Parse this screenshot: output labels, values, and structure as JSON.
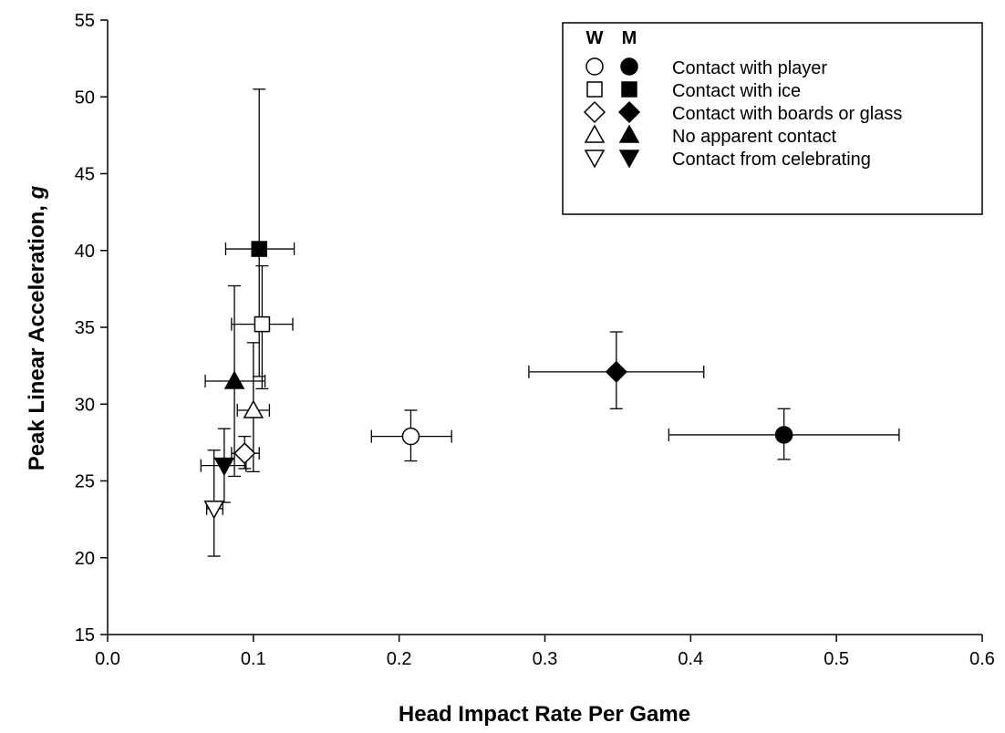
{
  "chart_data": {
    "type": "scatter",
    "title": "",
    "xlabel": "Head Impact Rate Per Game",
    "ylabel": "Peak Linear Acceleration, ",
    "ylabel_italic": "g",
    "xlim": [
      0.0,
      0.6
    ],
    "ylim": [
      15,
      55
    ],
    "x_ticks": [
      "0.0",
      "0.1",
      "0.2",
      "0.3",
      "0.4",
      "0.5",
      "0.6"
    ],
    "y_ticks": [
      "15",
      "20",
      "25",
      "30",
      "35",
      "40",
      "45",
      "50",
      "55"
    ],
    "x_tick_values": [
      0.0,
      0.1,
      0.2,
      0.3,
      0.4,
      0.5,
      0.6
    ],
    "y_tick_values": [
      15,
      20,
      25,
      30,
      35,
      40,
      45,
      50,
      55
    ],
    "grid": false,
    "legend_placement": "top-right",
    "legend_headers": [
      "W",
      "M"
    ],
    "series": [
      {
        "name": "Contact with player",
        "marker": "circle",
        "points": [
          {
            "group": "W",
            "x": 0.208,
            "y": 27.9,
            "xerr": [
              0.181,
              0.236
            ],
            "yerr": [
              26.3,
              29.6
            ]
          },
          {
            "group": "M",
            "x": 0.464,
            "y": 28.0,
            "xerr": [
              0.385,
              0.543
            ],
            "yerr": [
              26.4,
              29.7
            ]
          }
        ]
      },
      {
        "name": "Contact with ice",
        "marker": "square",
        "points": [
          {
            "group": "W",
            "x": 0.106,
            "y": 35.2,
            "xerr": [
              0.085,
              0.127
            ],
            "yerr": [
              31.0,
              39.0
            ]
          },
          {
            "group": "M",
            "x": 0.104,
            "y": 40.1,
            "xerr": [
              0.081,
              0.128
            ],
            "yerr": [
              31.8,
              50.5
            ]
          }
        ]
      },
      {
        "name": "Contact with boards or glass",
        "marker": "diamond",
        "points": [
          {
            "group": "W",
            "x": 0.094,
            "y": 26.8,
            "xerr": [
              0.085,
              0.104
            ],
            "yerr": [
              25.8,
              27.9
            ]
          },
          {
            "group": "M",
            "x": 0.349,
            "y": 32.1,
            "xerr": [
              0.289,
              0.409
            ],
            "yerr": [
              29.7,
              34.7
            ]
          }
        ]
      },
      {
        "name": "No apparent contact",
        "marker": "triangle-up",
        "points": [
          {
            "group": "W",
            "x": 0.1,
            "y": 29.6,
            "xerr": [
              0.089,
              0.111
            ],
            "yerr": [
              25.6,
              34.0
            ]
          },
          {
            "group": "M",
            "x": 0.087,
            "y": 31.5,
            "xerr": [
              0.067,
              0.108
            ],
            "yerr": [
              25.3,
              37.7
            ]
          }
        ]
      },
      {
        "name": "Contact from celebrating",
        "marker": "triangle-down",
        "points": [
          {
            "group": "W",
            "x": 0.073,
            "y": 23.2,
            "xerr": [
              0.068,
              0.079
            ],
            "yerr": [
              20.1,
              27.0
            ]
          },
          {
            "group": "M",
            "x": 0.08,
            "y": 26.0,
            "xerr": [
              0.064,
              0.095
            ],
            "yerr": [
              23.6,
              28.4
            ]
          }
        ]
      }
    ]
  }
}
